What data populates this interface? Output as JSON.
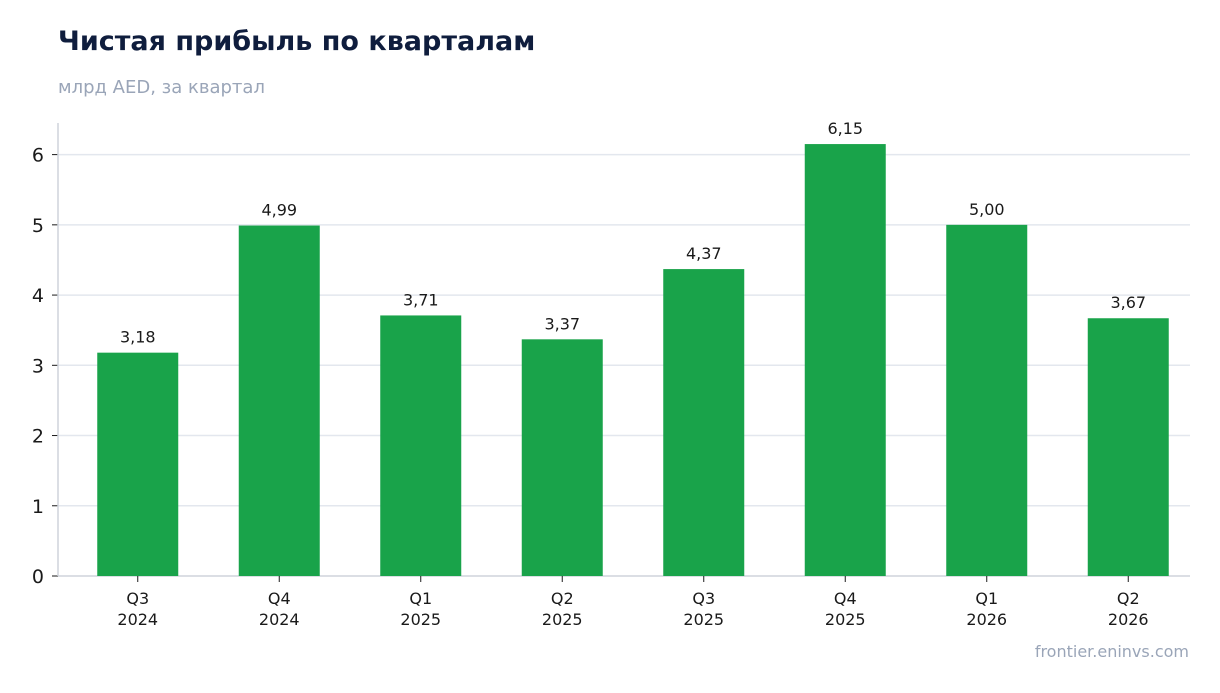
{
  "chart_data": {
    "type": "bar",
    "title": "Чистая прибыль по кварталам",
    "subtitle": "млрд AED, за квартал",
    "source": "frontier.eninvs.com",
    "categories": [
      [
        "Q3",
        "2024"
      ],
      [
        "Q4",
        "2024"
      ],
      [
        "Q1",
        "2025"
      ],
      [
        "Q2",
        "2025"
      ],
      [
        "Q3",
        "2025"
      ],
      [
        "Q4",
        "2025"
      ],
      [
        "Q1",
        "2026"
      ],
      [
        "Q2",
        "2026"
      ]
    ],
    "values": [
      3.18,
      4.99,
      3.71,
      3.37,
      4.37,
      6.15,
      5.0,
      3.67
    ],
    "value_labels": [
      "3,18",
      "4,99",
      "3,71",
      "3,37",
      "4,37",
      "6,15",
      "5,00",
      "3,67"
    ],
    "yticks": [
      0,
      1,
      2,
      3,
      4,
      5,
      6
    ],
    "ylim": [
      0,
      6.45
    ],
    "grid": true,
    "colors": {
      "bar": "#19a34a",
      "grid": "#e3e7ee",
      "axis": "#cfd4dc"
    }
  }
}
